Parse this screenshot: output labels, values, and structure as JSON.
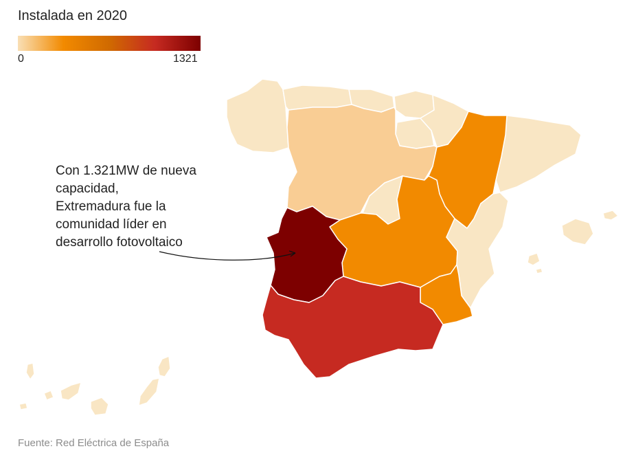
{
  "title": "Instalada en 2020",
  "legend": {
    "min_label": "0",
    "max_label": "1321",
    "min": 0,
    "max": 1321,
    "gradient_colors": [
      "#f9dfb5",
      "#f28a00",
      "#d06a00",
      "#c62a21",
      "#7d0000"
    ]
  },
  "annotation": {
    "lines": [
      "Con 1.321MW de nueva",
      "capacidad,",
      "Extremadura fue la",
      "comunidad líder en",
      "desarrollo fotovoltaico"
    ]
  },
  "source": "Fuente: Red Eléctrica de España",
  "colors": {
    "low": "#f9e6c4",
    "light_orange": "#f9cd94",
    "orange": "#f28a00",
    "red": "#c62a21",
    "dark_red": "#7d0000",
    "border": "#ffffff"
  }
}
